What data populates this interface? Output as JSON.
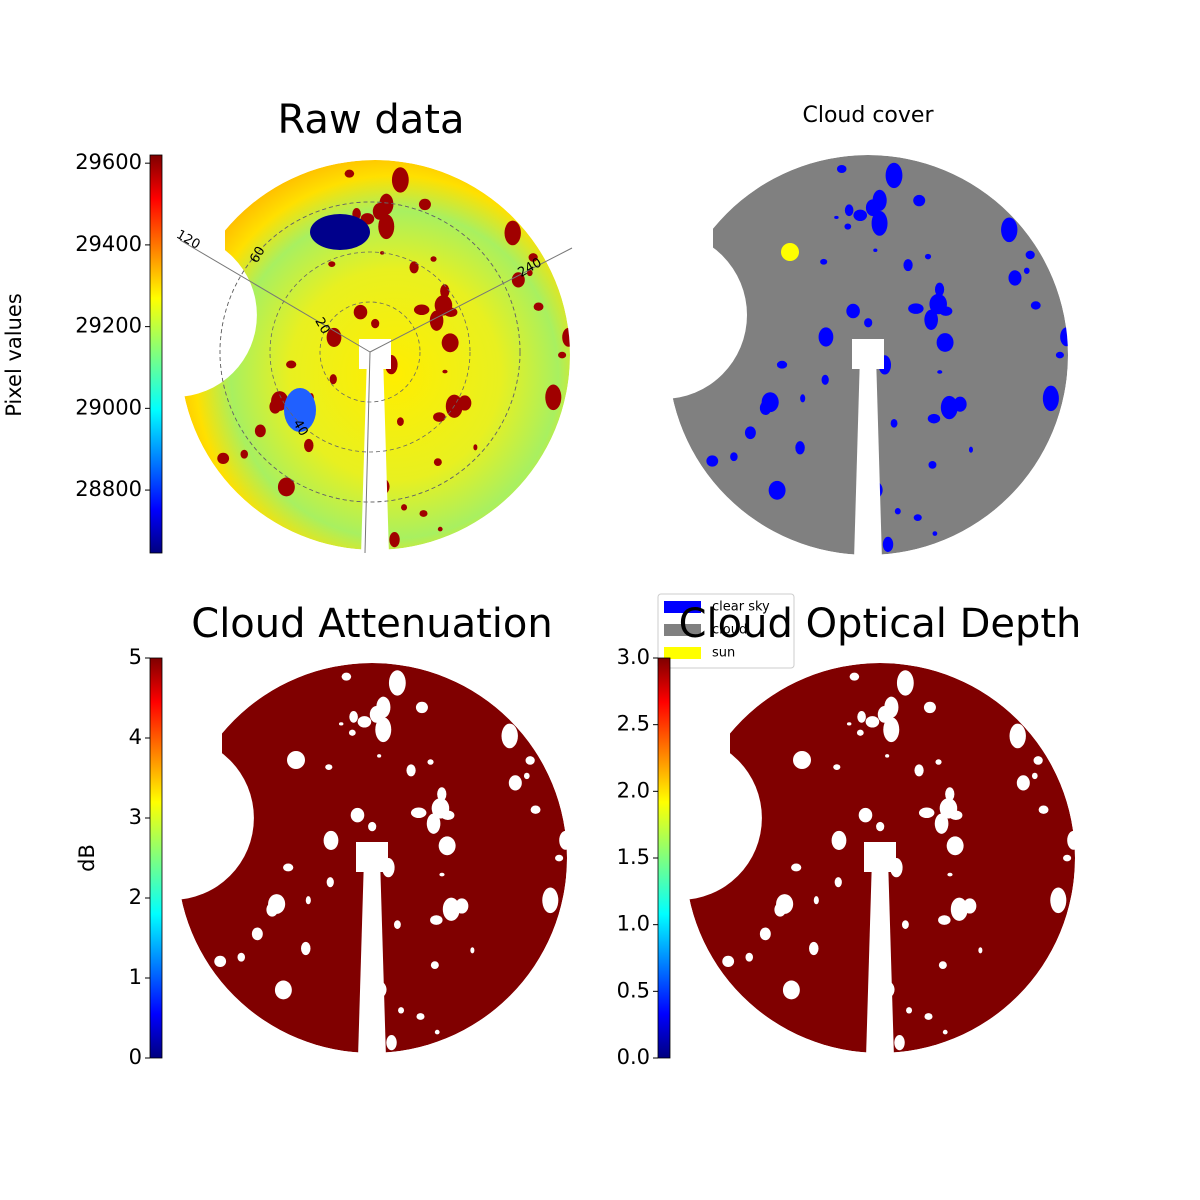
{
  "chart_data": [
    {
      "type": "image",
      "title": "Raw data",
      "ylabel": "Pixel values",
      "ylim": [
        28646,
        29620
      ],
      "yticks": [
        28800,
        29000,
        29200,
        29400,
        29600
      ],
      "annotations": [
        "120",
        "60",
        "240",
        "20",
        "40"
      ]
    },
    {
      "type": "image",
      "title": "Cloud cover",
      "legend": [
        {
          "name": "clear sky",
          "color": "#0000ff"
        },
        {
          "name": "cloud",
          "color": "#808080"
        },
        {
          "name": "sun",
          "color": "#ffff00"
        }
      ]
    },
    {
      "type": "image",
      "title": "Cloud Attenuation",
      "ylabel": "dB",
      "ylim": [
        0,
        5
      ],
      "yticks": [
        0,
        1,
        2,
        3,
        4,
        5
      ]
    },
    {
      "type": "image",
      "title": "Cloud Optical Depth",
      "ylim": [
        0,
        3
      ],
      "yticks": [
        {
          "value": 0,
          "label": "0.0"
        },
        {
          "value": 0.5,
          "label": "0.5"
        },
        {
          "value": 1,
          "label": "1.0"
        },
        {
          "value": 1.5,
          "label": "1.5"
        },
        {
          "value": 2,
          "label": "2.0"
        },
        {
          "value": 2.5,
          "label": "2.5"
        },
        {
          "value": 3,
          "label": "3.0"
        }
      ]
    }
  ]
}
